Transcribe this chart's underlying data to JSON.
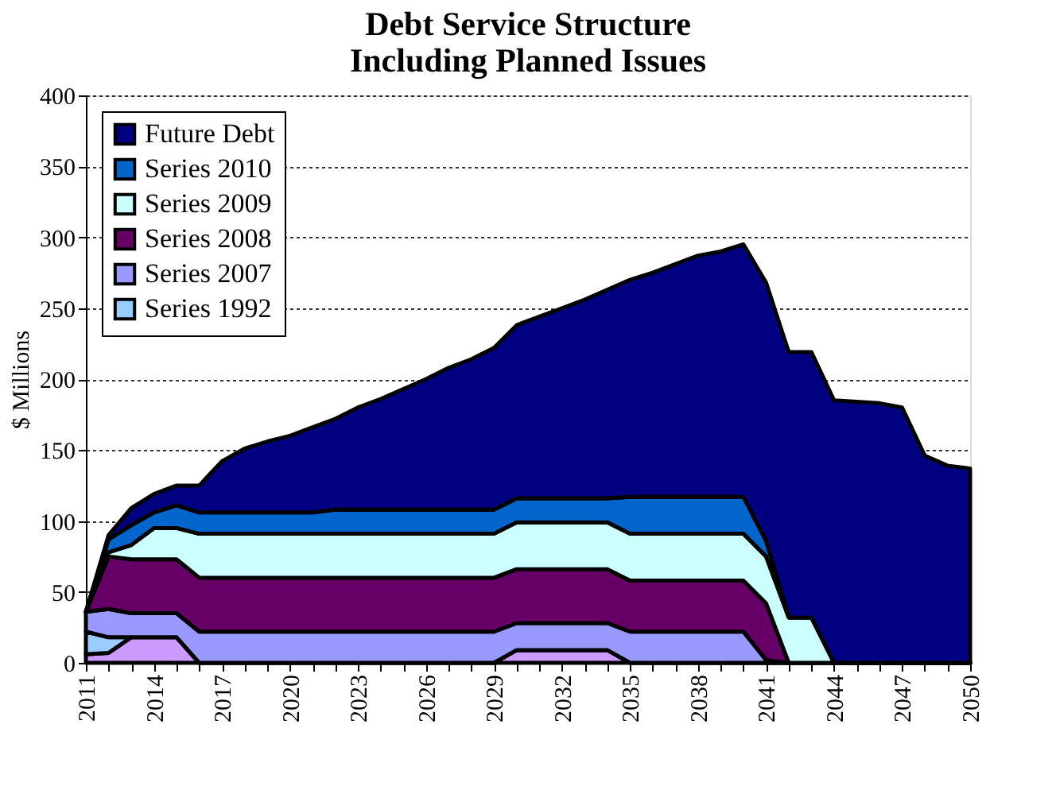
{
  "chart_data": {
    "type": "area",
    "title": [
      "Debt Service Structure",
      "Including Planned Issues"
    ],
    "ylabel": "$ Millions",
    "stacked": true,
    "grid": "y",
    "legend": "top left",
    "x": [
      2011,
      2012,
      2013,
      2014,
      2015,
      2016,
      2017,
      2018,
      2019,
      2020,
      2021,
      2022,
      2023,
      2024,
      2025,
      2026,
      2027,
      2028,
      2029,
      2030,
      2031,
      2032,
      2033,
      2034,
      2035,
      2036,
      2037,
      2038,
      2039,
      2040,
      2041,
      2042,
      2043,
      2044,
      2045,
      2046,
      2047,
      2048,
      2049,
      2050
    ],
    "xlim": [
      2011,
      2050
    ],
    "xticks": [
      2011,
      {
        "value": 2012,
        "label": null
      },
      {
        "value": 2013,
        "label": null
      },
      2014,
      {
        "value": 2015,
        "label": null
      },
      {
        "value": 2016,
        "label": null
      },
      2017,
      {
        "value": 2018,
        "label": null
      },
      {
        "value": 2019,
        "label": null
      },
      2020,
      {
        "value": 2021,
        "label": null
      },
      {
        "value": 2022,
        "label": null
      },
      2023,
      {
        "value": 2024,
        "label": null
      },
      {
        "value": 2025,
        "label": null
      },
      2026,
      {
        "value": 2027,
        "label": null
      },
      {
        "value": 2028,
        "label": null
      },
      2029,
      {
        "value": 2030,
        "label": null
      },
      {
        "value": 2031,
        "label": null
      },
      2032,
      {
        "value": 2033,
        "label": null
      },
      {
        "value": 2034,
        "label": null
      },
      2035,
      {
        "value": 2036,
        "label": null
      },
      {
        "value": 2037,
        "label": null
      },
      2038,
      {
        "value": 2039,
        "label": null
      },
      {
        "value": 2040,
        "label": null
      },
      2041,
      {
        "value": 2042,
        "label": null
      },
      {
        "value": 2043,
        "label": null
      },
      2044,
      {
        "value": 2045,
        "label": null
      },
      {
        "value": 2046,
        "label": null
      },
      2047,
      {
        "value": 2048,
        "label": null
      },
      {
        "value": 2049,
        "label": null
      },
      2050
    ],
    "ylim": [
      0,
      400
    ],
    "yticks": [
      0,
      50,
      100,
      150,
      200,
      250,
      300,
      350,
      400
    ],
    "series": [
      {
        "color": "#cc99ff",
        "values": [
          6,
          7,
          18,
          18,
          18,
          0,
          0,
          0,
          0,
          0,
          0,
          0,
          0,
          0,
          0,
          0,
          0,
          0,
          0,
          9,
          9,
          9,
          9,
          9,
          0,
          0,
          0,
          0,
          0,
          0,
          0,
          0,
          0,
          0,
          0,
          0,
          0,
          0,
          0,
          0
        ]
      },
      {
        "name": "Series 1992",
        "color": "#99ccff",
        "values": [
          16,
          11,
          0,
          0,
          0,
          0,
          0,
          0,
          0,
          0,
          0,
          0,
          0,
          0,
          0,
          0,
          0,
          0,
          0,
          0,
          0,
          0,
          0,
          0,
          0,
          0,
          0,
          0,
          0,
          0,
          0,
          0,
          0,
          0,
          0,
          0,
          0,
          0,
          0,
          0
        ]
      },
      {
        "name": "Series 2007",
        "color": "#9999ff",
        "values": [
          14,
          20,
          17,
          17,
          17,
          22,
          22,
          22,
          22,
          22,
          22,
          22,
          22,
          22,
          22,
          22,
          22,
          22,
          22,
          19,
          19,
          19,
          19,
          19,
          22,
          22,
          22,
          22,
          22,
          22,
          2,
          0,
          0,
          0,
          0,
          0,
          0,
          0,
          0,
          0
        ]
      },
      {
        "name": "Series 2008",
        "color": "#660066",
        "values": [
          0,
          37,
          38,
          38,
          38,
          38,
          38,
          38,
          38,
          38,
          38,
          38,
          38,
          38,
          38,
          38,
          38,
          38,
          38,
          38,
          38,
          38,
          38,
          38,
          36,
          36,
          36,
          36,
          36,
          36,
          40,
          0,
          0,
          0,
          0,
          0,
          0,
          0,
          0,
          0
        ]
      },
      {
        "name": "Series 2009",
        "color": "#ccffff",
        "values": [
          0,
          3,
          10,
          22,
          22,
          31,
          31,
          31,
          31,
          31,
          31,
          31,
          31,
          31,
          31,
          31,
          31,
          31,
          31,
          33,
          33,
          33,
          33,
          33,
          33,
          33,
          33,
          33,
          33,
          33,
          33,
          32,
          32,
          0,
          0,
          0,
          0,
          0,
          0,
          0
        ]
      },
      {
        "name": "Series 2010",
        "color": "#0066cc",
        "values": [
          0,
          9,
          14,
          11,
          16,
          15,
          15,
          15,
          15,
          15,
          15,
          17,
          17,
          17,
          17,
          17,
          17,
          17,
          17,
          17,
          17,
          17,
          17,
          17,
          26,
          26,
          26,
          26,
          26,
          26,
          11,
          0,
          0,
          0,
          0,
          0,
          0,
          0,
          0,
          0
        ]
      },
      {
        "name": "Future Debt",
        "color": "#000080",
        "values": [
          0,
          3,
          12,
          13,
          14,
          19,
          36,
          45,
          50,
          54,
          60,
          64,
          72,
          78,
          85,
          92,
          100,
          106,
          114,
          122,
          128,
          134,
          140,
          147,
          153,
          158,
          164,
          170,
          173,
          178,
          182,
          187,
          187,
          185,
          184,
          183,
          180,
          146,
          139,
          137
        ]
      }
    ]
  }
}
